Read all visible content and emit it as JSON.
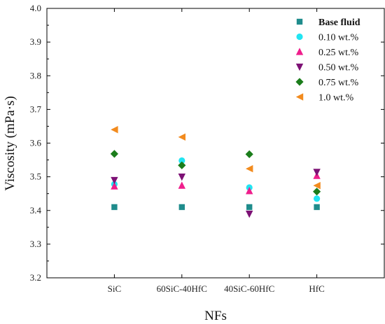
{
  "chart_data": {
    "type": "scatter",
    "xlabel": "NFs",
    "ylabel": "Viscosity (mPa·s)",
    "categories": [
      "SiC",
      "60SiC-40HfC",
      "40SiC-60HfC",
      "HfC"
    ],
    "ylim": [
      3.2,
      4.0
    ],
    "yticks": [
      "3.2",
      "3.3",
      "3.4",
      "3.5",
      "3.6",
      "3.7",
      "3.8",
      "3.9",
      "4.0"
    ],
    "grid": false,
    "legend": "top-right",
    "series": [
      {
        "name": "Base fluid",
        "marker": "square",
        "color": "#1f8c8c",
        "values": [
          3.41,
          3.41,
          3.41,
          3.41
        ]
      },
      {
        "name": "0.10 wt.%",
        "marker": "circle",
        "color": "#22e5f2",
        "values": [
          3.478,
          3.548,
          3.468,
          3.435
        ]
      },
      {
        "name": "0.25 wt.%",
        "marker": "triangle-up",
        "color": "#ef1e8c",
        "values": [
          3.472,
          3.474,
          3.458,
          3.503
        ]
      },
      {
        "name": "0.50 wt.%",
        "marker": "triangle-down",
        "color": "#7d1175",
        "values": [
          3.49,
          3.5,
          3.39,
          3.514
        ]
      },
      {
        "name": "0.75 wt.%",
        "marker": "diamond",
        "color": "#1b7d1b",
        "values": [
          3.568,
          3.534,
          3.567,
          3.456
        ]
      },
      {
        "name": "1.0 wt.%",
        "marker": "triangle-left",
        "color": "#f28b1e",
        "values": [
          3.64,
          3.618,
          3.524,
          3.474
        ]
      }
    ]
  }
}
